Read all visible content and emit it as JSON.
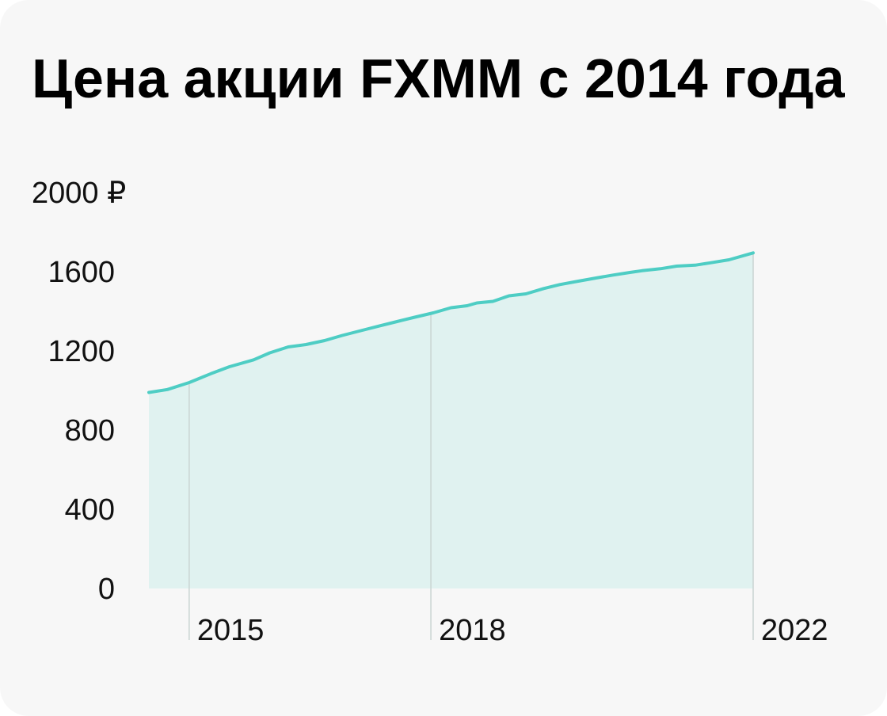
{
  "title": "Цена акции FXMM с 2014 года",
  "colors": {
    "background": "#f7f7f7",
    "line": "#4ecdc4",
    "area": "#e0f2f0",
    "marker": "#c9d4d2",
    "text": "#111111"
  },
  "chart_data": {
    "type": "area",
    "title": "Цена акции FXMM с 2014 года",
    "xlabel": "",
    "ylabel": "",
    "y_unit": "₽",
    "ylim": [
      0,
      2000
    ],
    "yticks": [
      0,
      400,
      800,
      1200,
      1600,
      2000
    ],
    "ytick_labels": [
      "0",
      "400",
      "800",
      "1200",
      "1600",
      "2000 ₽"
    ],
    "xlim": [
      2014.5,
      2022.0
    ],
    "xticks": [
      2015,
      2018,
      2022
    ],
    "xtick_labels": [
      "2015",
      "2018",
      "2022"
    ],
    "grid": false,
    "series": [
      {
        "x": [
          2014.5,
          2014.73,
          2015.0,
          2015.27,
          2015.5,
          2015.8,
          2016.0,
          2016.23,
          2016.45,
          2016.68,
          2016.9,
          2017.13,
          2017.35,
          2017.58,
          2017.8,
          2018.03,
          2018.25,
          2018.45,
          2018.57,
          2018.77,
          2018.97,
          2019.18,
          2019.4,
          2019.6,
          2019.83,
          2020.05,
          2020.26,
          2020.47,
          2020.62,
          2020.85,
          2021.05,
          2021.28,
          2021.47,
          2021.7,
          2022.0
        ],
        "values": [
          990,
          1005,
          1040,
          1085,
          1120,
          1155,
          1190,
          1220,
          1232,
          1252,
          1278,
          1302,
          1325,
          1348,
          1370,
          1392,
          1418,
          1428,
          1442,
          1450,
          1478,
          1488,
          1515,
          1535,
          1552,
          1568,
          1583,
          1596,
          1605,
          1615,
          1628,
          1633,
          1645,
          1660,
          1695
        ]
      }
    ],
    "markers": [
      2015,
      2018,
      2022
    ]
  }
}
